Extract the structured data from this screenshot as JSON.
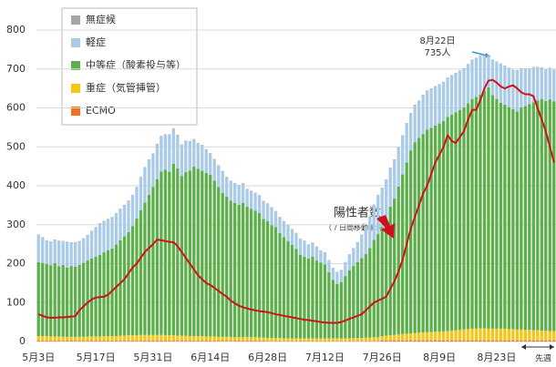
{
  "chart_data": {
    "type": "bar",
    "categories": [
      "5月3日",
      null,
      null,
      null,
      null,
      null,
      null,
      null,
      null,
      null,
      null,
      null,
      null,
      null,
      "5月17日",
      null,
      null,
      null,
      null,
      null,
      null,
      null,
      null,
      null,
      null,
      null,
      null,
      null,
      "5月31日",
      null,
      null,
      null,
      null,
      null,
      null,
      null,
      null,
      null,
      null,
      null,
      null,
      null,
      "6月14日",
      null,
      null,
      null,
      null,
      null,
      null,
      null,
      null,
      null,
      null,
      null,
      null,
      null,
      "6月28日",
      null,
      null,
      null,
      null,
      null,
      null,
      null,
      null,
      null,
      null,
      null,
      null,
      null,
      "7月12日",
      null,
      null,
      null,
      null,
      null,
      null,
      null,
      null,
      null,
      null,
      null,
      null,
      null,
      "7月26日",
      null,
      null,
      null,
      null,
      null,
      null,
      null,
      null,
      null,
      null,
      null,
      null,
      null,
      "8月9日",
      null,
      null,
      null,
      null,
      null,
      null,
      null,
      null,
      null,
      null,
      null,
      null,
      null,
      "8月23日",
      null,
      null,
      null,
      null,
      null,
      null,
      null,
      null,
      null,
      null,
      null,
      null,
      null,
      null
    ],
    "series": [
      {
        "name": "無症候",
        "color": "#a6a6a6",
        "values": [
          1,
          1,
          1,
          1,
          1,
          1,
          1,
          1,
          1,
          1,
          1,
          1,
          1,
          1,
          1,
          1,
          1,
          1,
          1,
          1,
          1,
          1,
          1,
          1,
          1,
          1,
          1,
          1,
          1,
          1,
          1,
          1,
          1,
          1,
          1,
          1,
          1,
          1,
          1,
          1,
          1,
          1,
          1,
          1,
          1,
          1,
          1,
          1,
          1,
          1,
          1,
          1,
          1,
          1,
          1,
          1,
          1,
          1,
          1,
          1,
          1,
          1,
          1,
          1,
          1,
          1,
          1,
          1,
          1,
          1,
          1,
          1,
          1,
          1,
          1,
          1,
          1,
          1,
          1,
          1,
          1,
          1,
          1,
          1,
          1,
          1,
          1,
          1,
          1,
          1,
          1,
          1,
          1,
          1,
          1,
          1,
          1,
          1,
          1,
          1,
          1,
          1,
          1,
          1,
          1,
          1,
          1,
          1,
          1,
          1,
          1,
          1,
          1,
          1,
          1,
          1,
          1,
          1,
          1,
          1,
          1,
          1,
          1,
          1,
          1,
          1,
          1
        ]
      },
      {
        "name": "軽症",
        "color": "#a9cbe8",
        "values": [
          70,
          65,
          60,
          60,
          60,
          65,
          60,
          65,
          60,
          62,
          60,
          62,
          65,
          70,
          75,
          80,
          80,
          80,
          80,
          80,
          80,
          80,
          80,
          80,
          80,
          85,
          90,
          90,
          85,
          90,
          90,
          90,
          95,
          90,
          85,
          80,
          80,
          75,
          70,
          65,
          65,
          60,
          55,
          55,
          55,
          55,
          50,
          50,
          50,
          50,
          50,
          45,
          45,
          45,
          45,
          45,
          45,
          45,
          40,
          40,
          40,
          40,
          40,
          40,
          40,
          40,
          35,
          35,
          35,
          30,
          30,
          30,
          30,
          30,
          30,
          35,
          40,
          45,
          50,
          60,
          70,
          80,
          90,
          100,
          100,
          100,
          100,
          100,
          100,
          100,
          100,
          95,
          95,
          95,
          100,
          100,
          100,
          100,
          100,
          100,
          100,
          100,
          100,
          100,
          100,
          100,
          100,
          100,
          100,
          90,
          81,
          90,
          95,
          100,
          100,
          100,
          100,
          105,
          100,
          95,
          90,
          90,
          85,
          80,
          80,
          80,
          80
        ]
      },
      {
        "name": "中等症（酸素投与等）",
        "color": "#5cb04a",
        "values": [
          190,
          188,
          185,
          183,
          188,
          180,
          185,
          178,
          182,
          180,
          185,
          190,
          195,
          200,
          205,
          210,
          215,
          220,
          225,
          235,
          245,
          255,
          265,
          280,
          300,
          320,
          340,
          360,
          380,
          400,
          420,
          425,
          420,
          440,
          430,
          410,
          420,
          425,
          435,
          430,
          425,
          420,
          415,
          400,
          385,
          370,
          360,
          350,
          345,
          340,
          345,
          335,
          330,
          325,
          320,
          305,
          300,
          290,
          285,
          270,
          260,
          250,
          240,
          230,
          215,
          210,
          205,
          210,
          200,
          195,
          190,
          170,
          150,
          140,
          145,
          160,
          175,
          185,
          195,
          205,
          215,
          230,
          250,
          265,
          280,
          300,
          330,
          350,
          380,
          410,
          440,
          470,
          490,
          500,
          510,
          520,
          525,
          530,
          535,
          540,
          550,
          555,
          560,
          565,
          570,
          580,
          590,
          595,
          600,
          610,
          620,
          600,
          590,
          580,
          575,
          570,
          565,
          560,
          570,
          575,
          580,
          585,
          590,
          595,
          590,
          595,
          590
        ]
      },
      {
        "name": "重症（気管挿管）",
        "color": "#f5c518",
        "values": [
          12,
          12,
          12,
          11,
          11,
          11,
          10,
          10,
          10,
          10,
          10,
          10,
          11,
          11,
          11,
          11,
          12,
          12,
          12,
          12,
          13,
          13,
          14,
          14,
          14,
          15,
          15,
          15,
          15,
          15,
          15,
          14,
          14,
          14,
          13,
          13,
          13,
          12,
          12,
          12,
          12,
          11,
          11,
          11,
          10,
          10,
          10,
          10,
          9,
          9,
          9,
          9,
          9,
          9,
          8,
          8,
          8,
          8,
          8,
          8,
          7,
          7,
          7,
          7,
          7,
          7,
          7,
          7,
          7,
          7,
          7,
          7,
          7,
          7,
          7,
          7,
          7,
          8,
          8,
          8,
          9,
          9,
          10,
          10,
          11,
          12,
          13,
          14,
          15,
          16,
          17,
          18,
          19,
          20,
          20,
          21,
          21,
          22,
          22,
          23,
          24,
          25,
          26,
          27,
          28,
          29,
          30,
          30,
          31,
          31,
          30,
          30,
          30,
          30,
          30,
          29,
          29,
          28,
          28,
          27,
          27,
          26,
          26,
          25,
          25,
          24,
          24
        ]
      },
      {
        "name": "ECMO",
        "color": "#f0701e",
        "values": [
          2,
          2,
          2,
          2,
          2,
          2,
          2,
          2,
          2,
          2,
          2,
          2,
          2,
          2,
          2,
          2,
          2,
          2,
          2,
          2,
          2,
          2,
          2,
          2,
          2,
          2,
          2,
          2,
          2,
          2,
          2,
          2,
          2,
          2,
          2,
          2,
          2,
          2,
          2,
          2,
          2,
          2,
          2,
          2,
          2,
          2,
          2,
          2,
          2,
          2,
          2,
          2,
          2,
          2,
          2,
          2,
          1,
          1,
          1,
          1,
          1,
          1,
          1,
          1,
          1,
          1,
          1,
          1,
          1,
          1,
          1,
          1,
          1,
          1,
          1,
          1,
          1,
          1,
          1,
          1,
          1,
          1,
          1,
          1,
          3,
          3,
          3,
          3,
          3,
          3,
          3,
          3,
          3,
          3,
          3,
          3,
          3,
          3,
          3,
          3,
          3,
          3,
          3,
          3,
          3,
          3,
          3,
          3,
          3,
          3,
          3,
          3,
          3,
          3,
          3,
          3,
          3,
          3,
          3,
          3,
          3,
          3,
          3,
          3,
          3,
          3,
          3
        ]
      }
    ],
    "line": {
      "name": "陽性者数",
      "color": "#d0111b",
      "values": [
        70,
        66,
        62,
        61,
        61,
        62,
        62,
        63,
        64,
        65,
        80,
        90,
        100,
        108,
        113,
        114,
        115,
        120,
        130,
        140,
        150,
        160,
        175,
        190,
        200,
        215,
        230,
        240,
        250,
        262,
        260,
        258,
        256,
        255,
        245,
        230,
        215,
        200,
        185,
        170,
        160,
        150,
        145,
        138,
        130,
        122,
        115,
        105,
        98,
        92,
        88,
        85,
        82,
        80,
        78,
        77,
        75,
        73,
        70,
        68,
        66,
        64,
        62,
        60,
        58,
        56,
        55,
        53,
        52,
        50,
        49,
        48,
        48,
        48,
        50,
        54,
        58,
        62,
        66,
        70,
        80,
        90,
        100,
        105,
        110,
        115,
        135,
        155,
        180,
        210,
        250,
        290,
        320,
        350,
        380,
        400,
        430,
        460,
        480,
        500,
        530,
        515,
        510,
        525,
        540,
        570,
        595,
        595,
        620,
        650,
        670,
        672,
        665,
        655,
        650,
        655,
        658,
        650,
        640,
        635,
        635,
        630,
        600,
        570,
        540,
        500,
        460
      ]
    },
    "annotations": {
      "peak_date": "8月22日",
      "peak_value": "735人",
      "line_label": "陽性者数",
      "line_sublabel": "（７日間移動平均）",
      "last_week": "先週"
    },
    "ylim": [
      0,
      800
    ],
    "yticks": [
      0,
      100,
      200,
      300,
      400,
      500,
      600,
      700,
      800
    ],
    "grid": true,
    "legend": "upper left",
    "stacked": true
  }
}
